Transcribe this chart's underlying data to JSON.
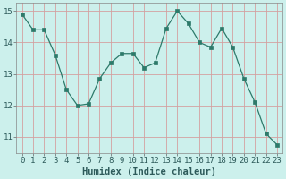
{
  "x": [
    0,
    1,
    2,
    3,
    4,
    5,
    6,
    7,
    8,
    9,
    10,
    11,
    12,
    13,
    14,
    15,
    16,
    17,
    18,
    19,
    20,
    21,
    22,
    23
  ],
  "y": [
    14.9,
    14.4,
    14.4,
    13.6,
    12.5,
    12.0,
    12.05,
    12.85,
    13.35,
    13.65,
    13.65,
    13.2,
    13.35,
    14.45,
    15.0,
    14.6,
    14.0,
    13.85,
    14.45,
    13.85,
    12.85,
    12.1,
    11.1,
    10.75
  ],
  "line_color": "#2d7a6a",
  "marker": "s",
  "marker_size": 2.5,
  "bg_color": "#ccf0ec",
  "grid_color": "#d4a0a0",
  "xlabel": "Humidex (Indice chaleur)",
  "ylim": [
    10.5,
    15.25
  ],
  "xlim": [
    -0.5,
    23.5
  ],
  "yticks": [
    11,
    12,
    13,
    14,
    15
  ],
  "xticks": [
    0,
    1,
    2,
    3,
    4,
    5,
    6,
    7,
    8,
    9,
    10,
    11,
    12,
    13,
    14,
    15,
    16,
    17,
    18,
    19,
    20,
    21,
    22,
    23
  ],
  "tick_fontsize": 6.5,
  "xlabel_fontsize": 7.5,
  "xlabel_fontweight": "bold"
}
